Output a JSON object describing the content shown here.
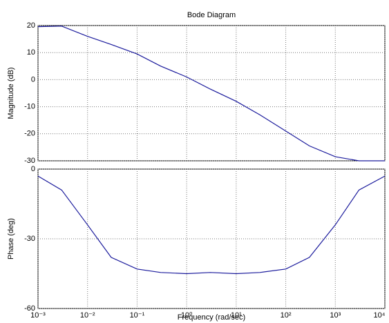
{
  "chart_data": [
    {
      "type": "line",
      "title": "Bode Diagram",
      "y_label": "Magnitude (dB)",
      "x": [
        0.001,
        0.003,
        0.01,
        0.03,
        0.1,
        0.3,
        1,
        3,
        10,
        30,
        100,
        300,
        1000,
        3000,
        10000
      ],
      "series": [
        {
          "color": "#1a1a9c",
          "values": [
            19.6,
            19.8,
            16,
            13,
            9.5,
            5,
            1,
            -3.5,
            -8,
            -13,
            -19,
            -24.5,
            -28.5,
            -30,
            -30
          ]
        }
      ],
      "xscale": "log",
      "xlim": [
        0.001,
        10000
      ],
      "ylim": [
        -30,
        20
      ],
      "yticks": [
        20,
        10,
        0,
        -10,
        -20,
        -30
      ],
      "grid": true
    },
    {
      "type": "line",
      "y_label": "Phase (deg)",
      "x_label": "Frequency  (rad/sec)",
      "x": [
        0.001,
        0.003,
        0.01,
        0.03,
        0.1,
        0.3,
        1,
        3,
        10,
        30,
        100,
        300,
        1000,
        3000,
        10000
      ],
      "series": [
        {
          "color": "#1a1a9c",
          "values": [
            -3,
            -9,
            -24,
            -38,
            -43,
            -44.5,
            -45,
            -44.5,
            -45,
            -44.5,
            -43,
            -38,
            -24,
            -9,
            -3
          ]
        }
      ],
      "xscale": "log",
      "xlim": [
        0.001,
        10000
      ],
      "xticks": [
        {
          "value": 0.001,
          "label": "10⁻³"
        },
        {
          "value": 0.01,
          "label": "10⁻²"
        },
        {
          "value": 0.1,
          "label": "10⁻¹"
        },
        {
          "value": 1,
          "label": "10⁰"
        },
        {
          "value": 10,
          "label": "10¹"
        },
        {
          "value": 100,
          "label": "10²"
        },
        {
          "value": 1000,
          "label": "10³"
        },
        {
          "value": 10000,
          "label": "10⁴"
        }
      ],
      "ylim": [
        -60,
        0
      ],
      "yticks": [
        0,
        -30,
        -60
      ],
      "grid": true
    }
  ]
}
